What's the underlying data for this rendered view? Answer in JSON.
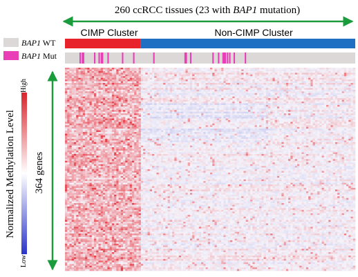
{
  "chart_data": {
    "type": "heatmap",
    "title": {
      "pre": "260 ccRCC tissues (23 with ",
      "gene": "BAP1",
      "post": " mutation)"
    },
    "n_tissues": 260,
    "n_mutated": 23,
    "ylabel": "364 genes",
    "n_genes": 364,
    "clusters": [
      {
        "name": "CIMP Cluster",
        "color": "#e8222b",
        "start": 0,
        "end": 68
      },
      {
        "name": "Non-CIMP Cluster",
        "color": "#1f6fc2",
        "start": 68,
        "end": 260
      }
    ],
    "legend": [
      {
        "gene": "BAP1",
        "status": "WT",
        "color": "#dcd8d8"
      },
      {
        "gene": "BAP1",
        "status": "Mut",
        "color": "#e83fb6"
      }
    ],
    "mutated_sample_indices": [
      13,
      15,
      16,
      26,
      30,
      32,
      33,
      38,
      51,
      61,
      79,
      107,
      112,
      132,
      137,
      141,
      161,
      142,
      108,
      143,
      145,
      147,
      151
    ],
    "colorbar": {
      "label": "Normalized  Methylation  Level",
      "high_label": "High",
      "low_label": "Low",
      "high_color": "#d9232b",
      "mid_color": "#ffffff",
      "low_color": "#2b34c9"
    }
  }
}
